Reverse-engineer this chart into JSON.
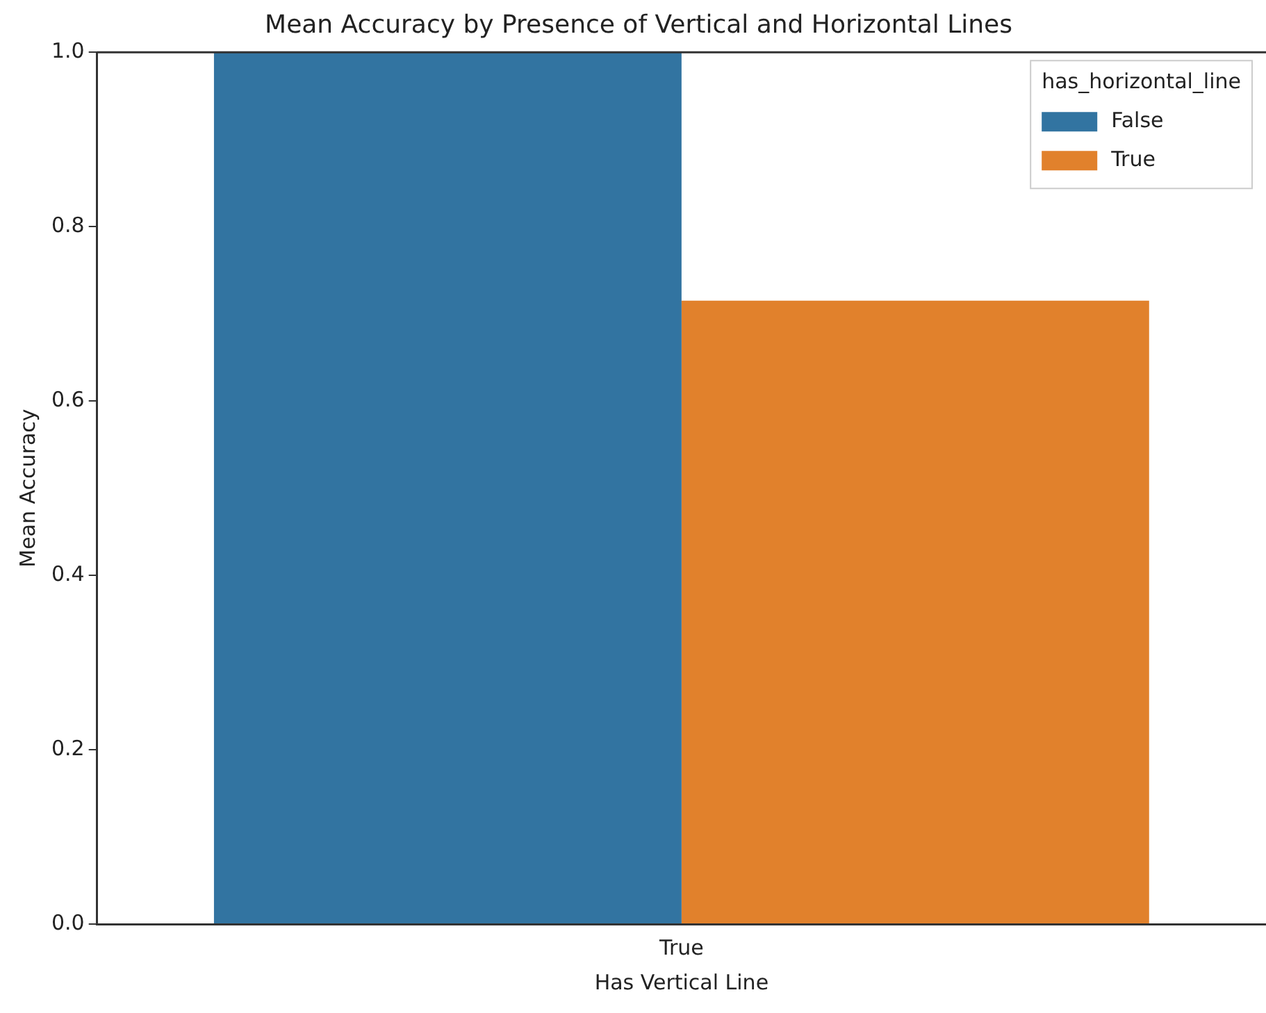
{
  "chart_data": {
    "type": "bar",
    "title": "Mean Accuracy by Presence of Vertical and Horizontal Lines",
    "xlabel": "Has Vertical Line",
    "ylabel": "Mean Accuracy",
    "legend_title": "has_horizontal_line",
    "categories": [
      "True"
    ],
    "series": [
      {
        "name": "False",
        "color": "#3274a1",
        "values": [
          1.0
        ]
      },
      {
        "name": "True",
        "color": "#e1812c",
        "values": [
          0.715
        ]
      }
    ],
    "ylim": [
      0,
      1
    ],
    "yticks": [
      {
        "value": 0,
        "label": "0.0"
      },
      {
        "value": 0.2,
        "label": "0.2"
      },
      {
        "value": 0.4,
        "label": "0.4"
      },
      {
        "value": 0.6,
        "label": "0.6"
      },
      {
        "value": 0.8,
        "label": "0.8"
      },
      {
        "value": 1,
        "label": "1.0"
      }
    ],
    "grid": false,
    "legend": "top right"
  }
}
